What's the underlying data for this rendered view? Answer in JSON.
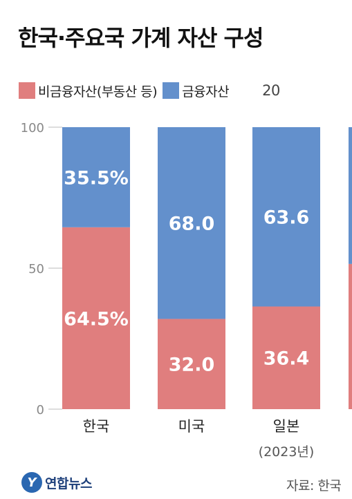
{
  "title": "한국·주요국 가계 자산 구성",
  "legend": {
    "items": [
      {
        "label": "비금융자산(부동산 등)",
        "color": "#e07e7e"
      },
      {
        "label": "금융자산",
        "color": "#6390cc"
      }
    ],
    "note": "20"
  },
  "chart_data": {
    "type": "bar",
    "stacked": true,
    "categories": [
      "한국",
      "미국",
      "일본"
    ],
    "category_sublabels": [
      "",
      "",
      "(2023년)"
    ],
    "series": [
      {
        "name": "비금융자산(부동산 등)",
        "values": [
          64.5,
          32.0,
          36.4
        ],
        "labels": [
          "64.5%",
          "32.0",
          "36.4"
        ],
        "color": "#e07e7e"
      },
      {
        "name": "금융자산",
        "values": [
          35.5,
          68.0,
          63.6
        ],
        "labels": [
          "35.5%",
          "68.0",
          "63.6"
        ],
        "color": "#6390cc"
      }
    ],
    "partial_bar": {
      "bottom_value": 51.5
    },
    "ylim": [
      0,
      100
    ],
    "yticks": [
      0,
      50,
      100
    ],
    "ytick_labels": [
      "0",
      "50",
      "100"
    ],
    "gridlines": false
  },
  "footer": {
    "logo_mark": "Y",
    "logo_text": "연합뉴스",
    "source": "자료: 한국"
  }
}
